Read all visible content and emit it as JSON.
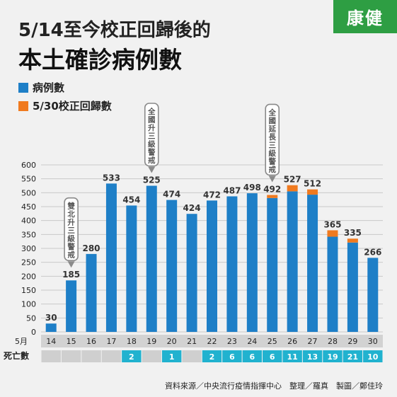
{
  "title_line1": "5/14至今校正回歸後的",
  "title_line2": "本土確診病例數",
  "logo_text": "康健",
  "legend": [
    {
      "label": "病例數",
      "color": "#1e7fc7"
    },
    {
      "label": "5/30校正回歸數",
      "color": "#f07a1f"
    }
  ],
  "source": "資料來源／中央流行疫情指揮中心　整理／羅真　製圖／鄭佳玲",
  "chart_data": {
    "type": "bar",
    "stacked": true,
    "ylim": [
      0,
      600
    ],
    "y_ticks": [
      0,
      50,
      100,
      150,
      200,
      250,
      300,
      350,
      400,
      450,
      500,
      550,
      600
    ],
    "x_axis_month_label": "5月",
    "categories": [
      "14",
      "15",
      "16",
      "17",
      "18",
      "19",
      "20",
      "21",
      "22",
      "23",
      "24",
      "25",
      "26",
      "27",
      "28",
      "29",
      "30"
    ],
    "series": [
      {
        "name": "病例數",
        "color": "#1e7fc7",
        "values": [
          30,
          185,
          280,
          533,
          454,
          525,
          474,
          424,
          472,
          487,
          498,
          481,
          505,
          493,
          342,
          321,
          266
        ]
      },
      {
        "name": "5/30校正回歸數",
        "color": "#f07a1f",
        "values": [
          0,
          0,
          0,
          0,
          0,
          0,
          0,
          0,
          0,
          0,
          0,
          11,
          22,
          19,
          23,
          14,
          0
        ]
      }
    ],
    "totals": [
      30,
      185,
      280,
      533,
      454,
      525,
      474,
      424,
      472,
      487,
      498,
      492,
      527,
      512,
      365,
      335,
      266
    ],
    "deaths_row_label": "死亡數",
    "deaths": [
      "",
      "",
      "",
      "",
      "2",
      "",
      "1",
      "",
      "2",
      "6",
      "6",
      "6",
      "11",
      "13",
      "19",
      "21",
      "10"
    ],
    "annotations": [
      {
        "category": "15",
        "text": "雙北升三級警戒"
      },
      {
        "category": "19",
        "text": "全國升三級警戒"
      },
      {
        "category": "25",
        "text": "全國延長三級警戒"
      }
    ]
  }
}
